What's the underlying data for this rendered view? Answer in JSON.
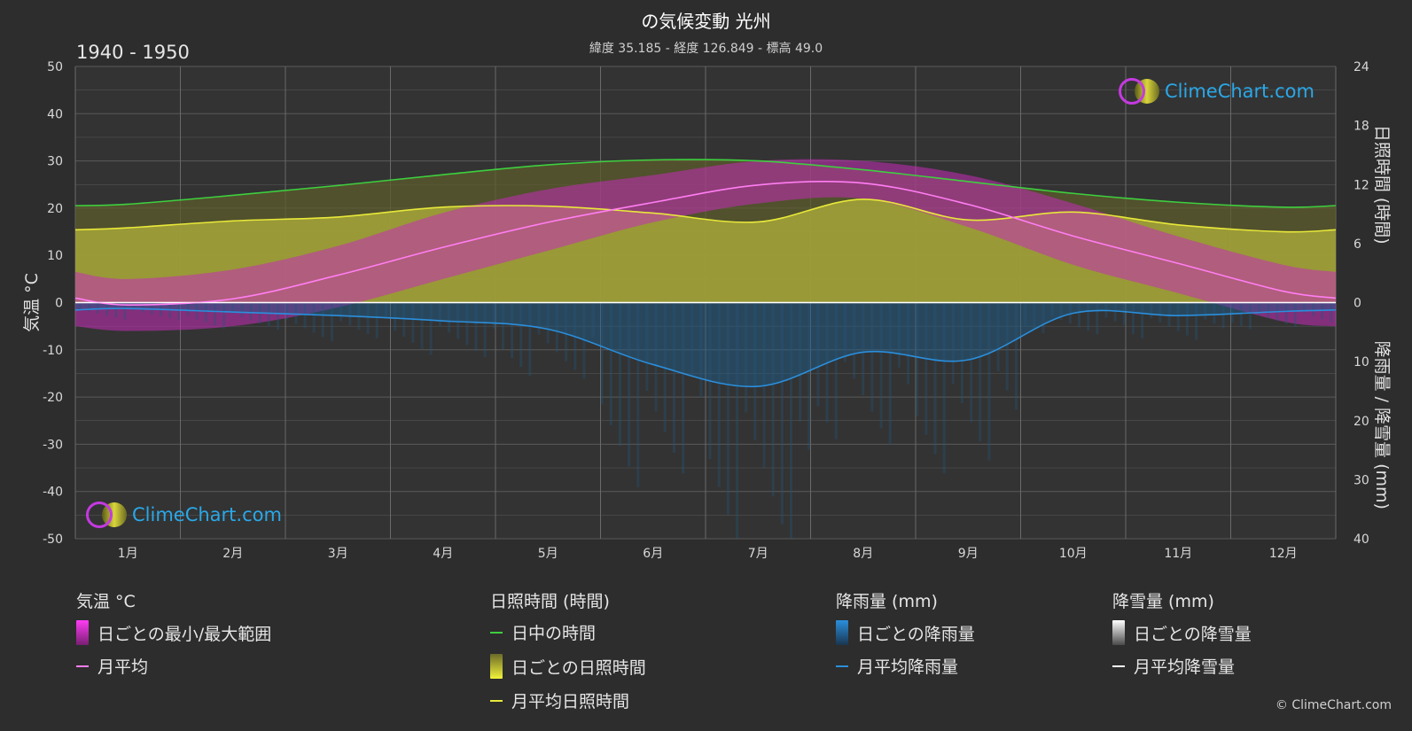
{
  "header": {
    "title": "の気候変動 光州",
    "subtitle": "緯度 35.185 - 経度 126.849 - 標高 49.0",
    "period": "1940 - 1950",
    "copyright": "© ClimeChart.com",
    "logo_text": "ClimeChart.com"
  },
  "axes": {
    "left_label": "気温 °C",
    "right_top_label": "日照時間 (時間)",
    "right_bottom_label": "降雨量 / 降雪量 (mm)",
    "left_ticks": [
      "50",
      "40",
      "30",
      "20",
      "10",
      "0",
      "-10",
      "-20",
      "-30",
      "-40",
      "-50"
    ],
    "right_top_ticks": [
      "24",
      "18",
      "12",
      "6",
      "0"
    ],
    "right_bottom_ticks": [
      "10",
      "20",
      "30",
      "40"
    ]
  },
  "legend": {
    "temp": {
      "head": "気温 °C",
      "range": "日ごとの最小/最大範囲",
      "avg": "月平均"
    },
    "sun": {
      "head": "日照時間 (時間)",
      "daylight": "日中の時間",
      "daily": "日ごとの日照時間",
      "avg": "月平均日照時間"
    },
    "rain": {
      "head": "降雨量 (mm)",
      "daily": "日ごとの降雨量",
      "avg": "月平均降雨量"
    },
    "snow": {
      "head": "降雪量 (mm)",
      "daily": "日ごとの降雪量",
      "avg": "月平均降雪量"
    }
  },
  "colors": {
    "background": "#2d2d2d",
    "daylight": "#3ecf3e",
    "sunshine_avg": "#e8e83a",
    "sunshine_fill": "#a6a63a",
    "temp_avg": "#ff7ef2",
    "temp_range": "#c42bb8",
    "rain_avg": "#2a8fdd",
    "rain_fill": "#1c5f8f",
    "snow_avg": "#ffffff",
    "grid": "#5a5a5a"
  },
  "chart_data": {
    "type": "line",
    "categories": [
      "1月",
      "2月",
      "3月",
      "4月",
      "5月",
      "6月",
      "7月",
      "8月",
      "9月",
      "10月",
      "11月",
      "12月"
    ],
    "temp_ylim": [
      -50,
      50
    ],
    "sun_ylim": [
      0,
      24
    ],
    "precip_ylim": [
      0,
      40
    ],
    "series": [
      {
        "name": "日中の時間",
        "axis": "sun",
        "values": [
          10.0,
          10.9,
          11.9,
          13.0,
          14.0,
          14.5,
          14.4,
          13.5,
          12.3,
          11.1,
          10.2,
          9.7
        ]
      },
      {
        "name": "月平均日照時間",
        "axis": "sun",
        "values": [
          7.6,
          8.3,
          8.7,
          9.7,
          9.8,
          9.1,
          8.2,
          10.5,
          8.4,
          9.2,
          7.9,
          7.2
        ]
      },
      {
        "name": "月平均",
        "axis": "temp",
        "values": [
          -0.5,
          0.8,
          5.8,
          11.7,
          17.0,
          21.2,
          24.9,
          25.3,
          20.8,
          14.1,
          8.3,
          2.4
        ]
      },
      {
        "name": "月平均降雨量",
        "axis": "precip",
        "values": [
          1.0,
          1.6,
          2.2,
          3.1,
          4.5,
          10.5,
          14.2,
          8.4,
          9.7,
          1.8,
          2.2,
          1.5
        ]
      },
      {
        "name": "月平均降雪量",
        "axis": "precip",
        "values": [
          0,
          0,
          0,
          0,
          0,
          0,
          0,
          0,
          0,
          0,
          0,
          0
        ]
      },
      {
        "name": "日ごとの最小/最大範囲",
        "axis": "temp",
        "min": [
          -6,
          -5,
          -1,
          5,
          11,
          17,
          21,
          22,
          16,
          8,
          2,
          -4
        ],
        "max": [
          5,
          7,
          12,
          19,
          24,
          27,
          30,
          30,
          27,
          21,
          14,
          8
        ]
      },
      {
        "name": "日ごとの日照時間",
        "axis": "sun",
        "values": [
          7.6,
          8.3,
          8.7,
          9.7,
          9.8,
          9.1,
          8.2,
          10.5,
          8.4,
          9.2,
          7.9,
          7.2
        ]
      }
    ]
  }
}
